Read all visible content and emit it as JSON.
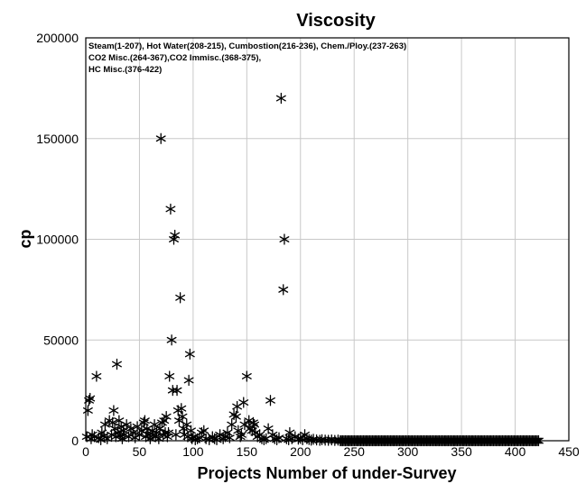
{
  "chart_data": {
    "type": "scatter",
    "title": "Viscosity",
    "xlabel": "Projects Number of under-Survey",
    "ylabel": "cp",
    "xlim": [
      0,
      450
    ],
    "ylim": [
      0,
      200000
    ],
    "xticks": [
      0,
      50,
      100,
      150,
      200,
      250,
      300,
      350,
      400,
      450
    ],
    "yticks": [
      0,
      50000,
      100000,
      150000,
      200000
    ],
    "grid": true,
    "marker": "asterisk",
    "annotations": [
      "Steam(1-207), Hot Water(208-215), Cumbostion(216-236), Chem./Ploy.(237-263)",
      "CO2 Misc.(264-367),CO2 Immisc.(368-375),",
      "HC Misc.(376-422)"
    ],
    "series": [
      {
        "points": [
          [
            1,
            2000
          ],
          [
            2,
            15000
          ],
          [
            3,
            20000
          ],
          [
            4,
            21000
          ],
          [
            5,
            1000
          ],
          [
            6,
            3000
          ],
          [
            8,
            2000
          ],
          [
            10,
            32000
          ],
          [
            12,
            1500
          ],
          [
            14,
            500
          ],
          [
            15,
            4000
          ],
          [
            17,
            2500
          ],
          [
            18,
            8000
          ],
          [
            20,
            1000
          ],
          [
            22,
            10000
          ],
          [
            24,
            3000
          ],
          [
            25,
            9000
          ],
          [
            26,
            15000
          ],
          [
            27,
            6000
          ],
          [
            28,
            2000
          ],
          [
            29,
            38000
          ],
          [
            30,
            4000
          ],
          [
            31,
            10000
          ],
          [
            32,
            2500
          ],
          [
            33,
            7000
          ],
          [
            34,
            1000
          ],
          [
            35,
            5000
          ],
          [
            36,
            3000
          ],
          [
            38,
            8000
          ],
          [
            40,
            2000
          ],
          [
            42,
            6000
          ],
          [
            44,
            4000
          ],
          [
            46,
            1500
          ],
          [
            48,
            7000
          ],
          [
            50,
            3000
          ],
          [
            52,
            5000
          ],
          [
            54,
            9000
          ],
          [
            55,
            10000
          ],
          [
            56,
            2000
          ],
          [
            57,
            6000
          ],
          [
            58,
            3000
          ],
          [
            60,
            1000
          ],
          [
            62,
            5000
          ],
          [
            63,
            3000
          ],
          [
            64,
            8000
          ],
          [
            65,
            2000
          ],
          [
            66,
            4000
          ],
          [
            68,
            1000
          ],
          [
            69,
            6000
          ],
          [
            70,
            150000
          ],
          [
            71,
            9000
          ],
          [
            72,
            3000
          ],
          [
            73,
            10000
          ],
          [
            74,
            4000
          ],
          [
            75,
            12000
          ],
          [
            76,
            2000
          ],
          [
            77,
            4000
          ],
          [
            78,
            32000
          ],
          [
            79,
            115000
          ],
          [
            80,
            50000
          ],
          [
            81,
            25000
          ],
          [
            82,
            100000
          ],
          [
            83,
            102000
          ],
          [
            84,
            3000
          ],
          [
            85,
            25000
          ],
          [
            86,
            15000
          ],
          [
            87,
            10000
          ],
          [
            88,
            71000
          ],
          [
            89,
            16000
          ],
          [
            90,
            12000
          ],
          [
            91,
            6000
          ],
          [
            92,
            3000
          ],
          [
            94,
            8000
          ],
          [
            95,
            2000
          ],
          [
            96,
            30000
          ],
          [
            97,
            43000
          ],
          [
            98,
            5000
          ],
          [
            99,
            1000
          ],
          [
            100,
            2000
          ],
          [
            102,
            500
          ],
          [
            104,
            1000
          ],
          [
            106,
            1500
          ],
          [
            108,
            4000
          ],
          [
            110,
            5000
          ],
          [
            112,
            1000
          ],
          [
            115,
            500
          ],
          [
            118,
            2000
          ],
          [
            120,
            1000
          ],
          [
            122,
            500
          ],
          [
            125,
            3000
          ],
          [
            128,
            1000
          ],
          [
            130,
            2000
          ],
          [
            132,
            4000
          ],
          [
            134,
            1500
          ],
          [
            136,
            8000
          ],
          [
            138,
            13000
          ],
          [
            140,
            12000
          ],
          [
            141,
            17000
          ],
          [
            142,
            5000
          ],
          [
            144,
            2000
          ],
          [
            145,
            3000
          ],
          [
            147,
            19000
          ],
          [
            148,
            8000
          ],
          [
            150,
            32000
          ],
          [
            152,
            10000
          ],
          [
            153,
            6000
          ],
          [
            155,
            5000
          ],
          [
            156,
            9000
          ],
          [
            157,
            8000
          ],
          [
            158,
            4000
          ],
          [
            160,
            2000
          ],
          [
            162,
            3000
          ],
          [
            164,
            1000
          ],
          [
            166,
            500
          ],
          [
            168,
            1000
          ],
          [
            170,
            6000
          ],
          [
            172,
            20000
          ],
          [
            174,
            3000
          ],
          [
            176,
            1000
          ],
          [
            178,
            500
          ],
          [
            180,
            1500
          ],
          [
            182,
            170000
          ],
          [
            184,
            75000
          ],
          [
            185,
            100000
          ],
          [
            187,
            1000
          ],
          [
            189,
            500
          ],
          [
            190,
            4000
          ],
          [
            192,
            1000
          ],
          [
            195,
            2000
          ],
          [
            198,
            800
          ],
          [
            200,
            1200
          ],
          [
            202,
            500
          ],
          [
            204,
            3000
          ],
          [
            206,
            1000
          ],
          [
            208,
            600
          ],
          [
            210,
            300
          ],
          [
            212,
            700
          ],
          [
            215,
            400
          ],
          [
            218,
            200
          ],
          [
            220,
            500
          ],
          [
            223,
            300
          ],
          [
            226,
            200
          ],
          [
            229,
            400
          ],
          [
            232,
            150
          ],
          [
            235,
            300
          ]
        ],
        "dense_band": {
          "x_from": 237,
          "x_to": 422,
          "y": 0
        }
      }
    ]
  }
}
